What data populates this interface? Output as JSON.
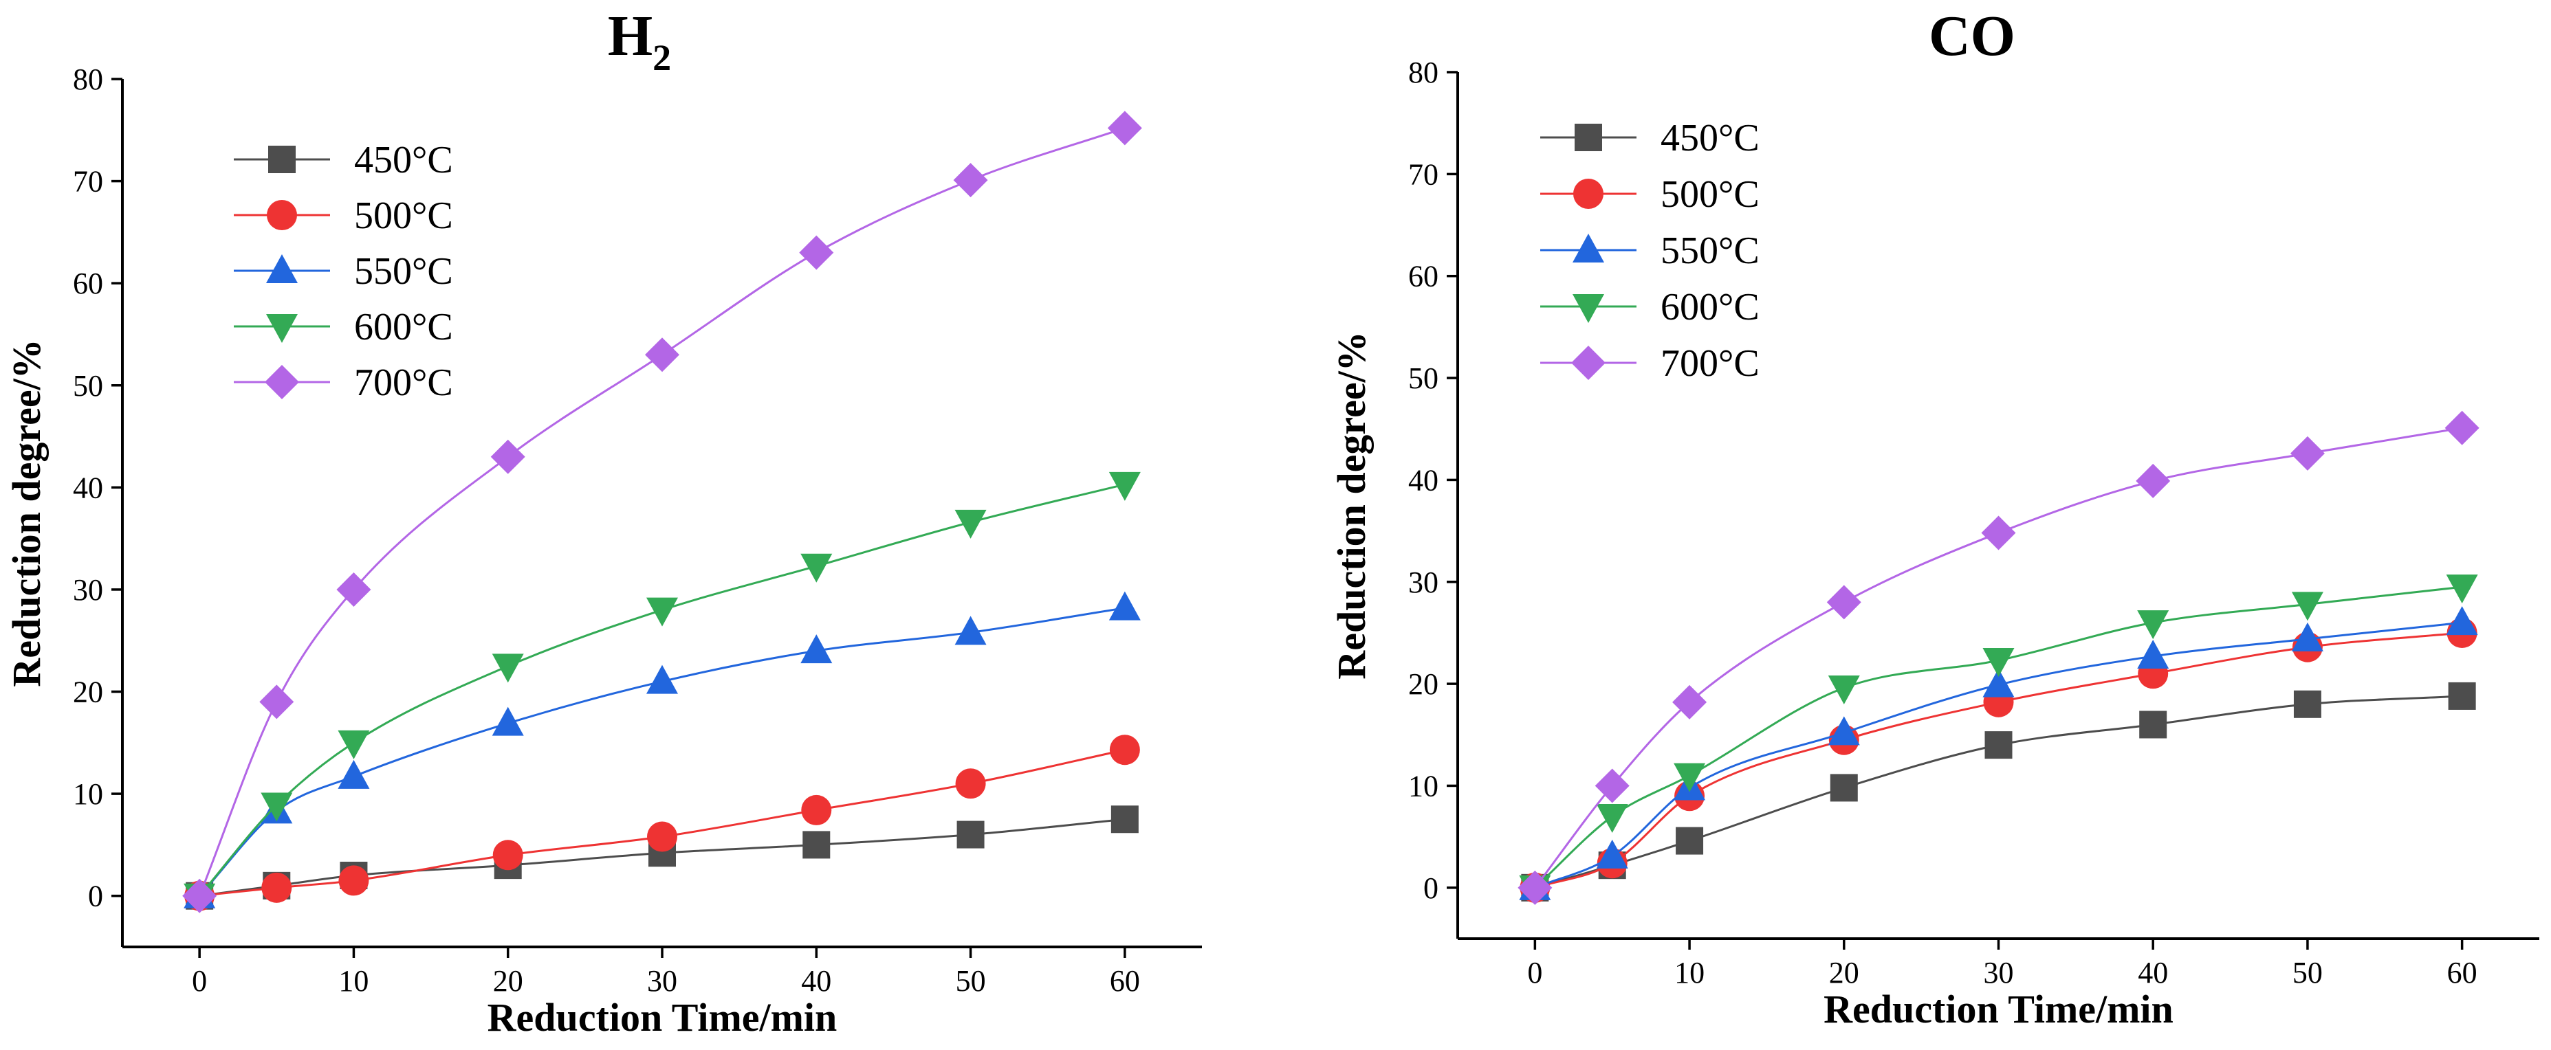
{
  "chart_data": [
    {
      "type": "line",
      "title": "H",
      "title_subscript": "2",
      "xlabel": "Reduction Time/min",
      "ylabel": "Reduction degree/%",
      "xlim": [
        -5,
        65
      ],
      "ylim": [
        -5,
        80
      ],
      "xticks": [
        0,
        10,
        20,
        30,
        40,
        50,
        60
      ],
      "yticks": [
        0,
        10,
        20,
        30,
        40,
        50,
        60,
        70,
        80
      ],
      "x": [
        0,
        5,
        10,
        20,
        30,
        40,
        50,
        60
      ],
      "legend_position": "top-left",
      "series": [
        {
          "name": "450°C",
          "color": "#4d4d4d",
          "marker": "square",
          "values": [
            0,
            1.0,
            2.0,
            3.0,
            4.2,
            5.0,
            6.0,
            7.5
          ]
        },
        {
          "name": "500°C",
          "color": "#ee3333",
          "marker": "circle",
          "values": [
            0,
            0.8,
            1.5,
            4.0,
            5.8,
            8.4,
            11.0,
            14.3
          ]
        },
        {
          "name": "550°C",
          "color": "#2266dd",
          "marker": "triangle-up",
          "values": [
            0,
            8.3,
            11.7,
            16.9,
            21.0,
            24.0,
            25.8,
            28.2
          ]
        },
        {
          "name": "600°C",
          "color": "#33aa55",
          "marker": "triangle-down",
          "values": [
            0,
            8.9,
            15.0,
            22.5,
            28.0,
            32.3,
            36.6,
            40.3
          ]
        },
        {
          "name": "700°C",
          "color": "#b366e6",
          "marker": "diamond",
          "values": [
            0,
            19.0,
            30.0,
            43.0,
            53.0,
            63.0,
            70.1,
            75.2
          ]
        }
      ]
    },
    {
      "type": "line",
      "title": "CO",
      "title_subscript": "",
      "xlabel": "Reduction Time/min",
      "ylabel": "Reduction degree/%",
      "xlim": [
        -5,
        65
      ],
      "ylim": [
        -5,
        80
      ],
      "xticks": [
        0,
        10,
        20,
        30,
        40,
        50,
        60
      ],
      "yticks": [
        0,
        10,
        20,
        30,
        40,
        50,
        60,
        70,
        80
      ],
      "x": [
        0,
        5,
        10,
        20,
        30,
        40,
        50,
        60
      ],
      "legend_position": "top-left",
      "series": [
        {
          "name": "450°C",
          "color": "#4d4d4d",
          "marker": "square",
          "values": [
            0,
            2.2,
            4.6,
            9.8,
            14.0,
            16.0,
            18.0,
            18.8
          ]
        },
        {
          "name": "500°C",
          "color": "#ee3333",
          "marker": "circle",
          "values": [
            0,
            2.4,
            9.0,
            14.5,
            18.2,
            21.0,
            23.6,
            25.0
          ]
        },
        {
          "name": "550°C",
          "color": "#2266dd",
          "marker": "triangle-up",
          "values": [
            0,
            3.1,
            9.8,
            15.2,
            19.9,
            22.7,
            24.4,
            26.0
          ]
        },
        {
          "name": "600°C",
          "color": "#33aa55",
          "marker": "triangle-down",
          "values": [
            0,
            7.0,
            11.0,
            19.6,
            22.3,
            26.0,
            27.8,
            29.5
          ]
        },
        {
          "name": "700°C",
          "color": "#b366e6",
          "marker": "diamond",
          "values": [
            0,
            10.0,
            18.2,
            28.0,
            34.8,
            39.9,
            42.6,
            45.1
          ]
        }
      ]
    }
  ]
}
